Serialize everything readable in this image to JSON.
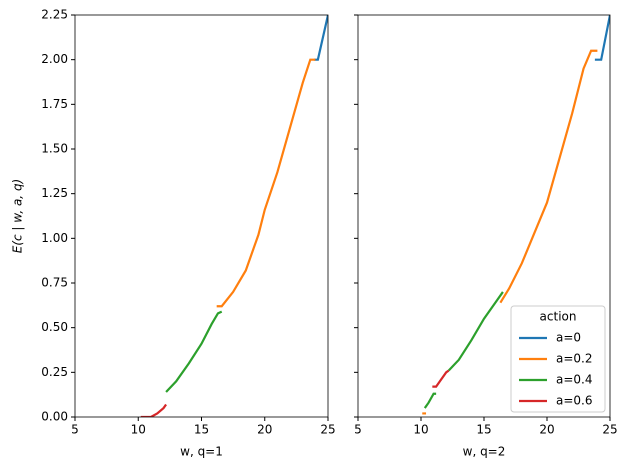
{
  "chart_data": [
    {
      "type": "line",
      "xlabel": "w, q=1",
      "ylabel": "E(c | w, a, q)",
      "xlim": [
        5,
        25
      ],
      "xticks": [
        5,
        10,
        15,
        20,
        25
      ],
      "ylim": [
        0,
        2.25
      ],
      "yticks": [
        {
          "value": 0,
          "label": "0.00"
        },
        {
          "value": 0.25,
          "label": "0.25"
        },
        {
          "value": 0.5,
          "label": "0.50"
        },
        {
          "value": 0.75,
          "label": "0.75"
        },
        {
          "value": 1,
          "label": "1.00"
        },
        {
          "value": 1.25,
          "label": "1.25"
        },
        {
          "value": 1.5,
          "label": "1.50"
        },
        {
          "value": 1.75,
          "label": "1.75"
        },
        {
          "value": 2,
          "label": "2.00"
        },
        {
          "value": 2.25,
          "label": "2.25"
        }
      ],
      "series": [
        {
          "color": "#1f77b4",
          "x": [
            23.9,
            24.2,
            25
          ],
          "values": [
            2.0,
            2.0,
            2.25
          ]
        },
        {
          "color": "#ff7f0e",
          "x": [
            16.2,
            16.6,
            17.5,
            18.5,
            19.5,
            20,
            21,
            22,
            23,
            23.6,
            24
          ],
          "values": [
            0.62,
            0.62,
            0.7,
            0.82,
            1.02,
            1.16,
            1.37,
            1.62,
            1.87,
            2.0,
            2.0
          ]
        },
        {
          "color": "#2ca02c",
          "x": [
            12.2,
            13,
            14,
            15,
            15.8,
            16.3,
            16.6
          ],
          "values": [
            0.14,
            0.2,
            0.3,
            0.41,
            0.52,
            0.58,
            0.59
          ]
        },
        {
          "color": "#d62728",
          "x": [
            10.2,
            11,
            11.5,
            12,
            12.2
          ],
          "values": [
            0.0,
            0.0,
            0.02,
            0.05,
            0.07
          ]
        }
      ]
    },
    {
      "type": "line",
      "xlabel": "w, q=2",
      "xlim": [
        5,
        25
      ],
      "xticks": [
        5,
        10,
        15,
        20,
        25
      ],
      "ylim": [
        0,
        2.25
      ],
      "yticks": [
        0,
        0.25,
        0.5,
        0.75,
        1,
        1.25,
        1.5,
        1.75,
        2,
        2.25
      ],
      "legend_title": "action",
      "legend": "lower right",
      "series": [
        {
          "name": "a=0",
          "color": "#1f77b4",
          "x": [
            23.8,
            24.3,
            25
          ],
          "values": [
            2.0,
            2.0,
            2.25
          ]
        },
        {
          "name": "a=0.2",
          "color": "#ff7f0e",
          "x": [
            10.1,
            10.4,
            null,
            16.3,
            17,
            18,
            19,
            20,
            21,
            22,
            22.9,
            23.5,
            24
          ],
          "values": [
            0.02,
            0.02,
            null,
            0.64,
            0.72,
            0.86,
            1.03,
            1.2,
            1.45,
            1.7,
            1.95,
            2.05,
            2.05
          ]
        },
        {
          "name": "a=0.4",
          "color": "#2ca02c",
          "x": [
            10.3,
            10.6,
            11,
            11.2,
            null,
            12.2,
            13,
            14,
            15,
            16,
            16.5
          ],
          "values": [
            0.05,
            0.08,
            0.13,
            0.13,
            null,
            0.26,
            0.32,
            0.43,
            0.55,
            0.65,
            0.7
          ]
        },
        {
          "name": "a=0.6",
          "color": "#d62728",
          "x": [
            10.9,
            11.2,
            11.5,
            12,
            12.2
          ],
          "values": [
            0.17,
            0.17,
            0.2,
            0.25,
            0.26
          ]
        }
      ]
    }
  ]
}
